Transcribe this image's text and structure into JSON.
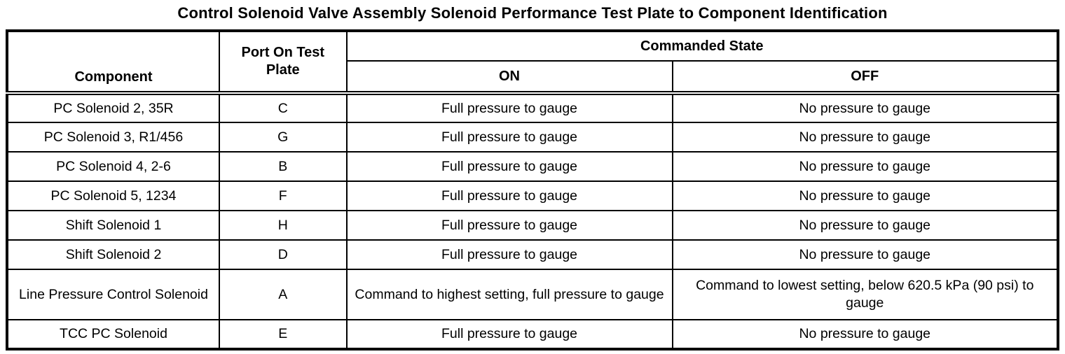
{
  "title": "Control Solenoid Valve Assembly Solenoid Performance Test Plate to Component Identification",
  "table": {
    "headers": {
      "component": "Component",
      "port": "Port On Test Plate",
      "commanded_state": "Commanded State",
      "on": "ON",
      "off": "OFF"
    },
    "rows": [
      {
        "component": "PC Solenoid 2, 35R",
        "port": "C",
        "on": "Full pressure to gauge",
        "off": "No pressure to gauge"
      },
      {
        "component": "PC Solenoid 3, R1/456",
        "port": "G",
        "on": "Full pressure to gauge",
        "off": "No pressure to gauge"
      },
      {
        "component": "PC Solenoid 4, 2-6",
        "port": "B",
        "on": "Full pressure to gauge",
        "off": "No pressure to gauge"
      },
      {
        "component": "PC Solenoid 5, 1234",
        "port": "F",
        "on": "Full pressure to gauge",
        "off": "No pressure to gauge"
      },
      {
        "component": "Shift Solenoid 1",
        "port": "H",
        "on": "Full pressure to gauge",
        "off": "No pressure to gauge"
      },
      {
        "component": "Shift Solenoid 2",
        "port": "D",
        "on": "Full pressure to gauge",
        "off": "No pressure to gauge"
      },
      {
        "component": "Line Pressure Control Solenoid",
        "port": "A",
        "on": "Command to highest setting, full pressure to gauge",
        "off": "Command to lowest setting, below 620.5 kPa (90 psi) to gauge"
      },
      {
        "component": "TCC PC Solenoid",
        "port": "E",
        "on": "Full pressure to gauge",
        "off": "No pressure to gauge"
      }
    ],
    "tall_row_index": 6
  },
  "colors": {
    "text": "#000000",
    "border": "#000000",
    "background": "#ffffff"
  }
}
